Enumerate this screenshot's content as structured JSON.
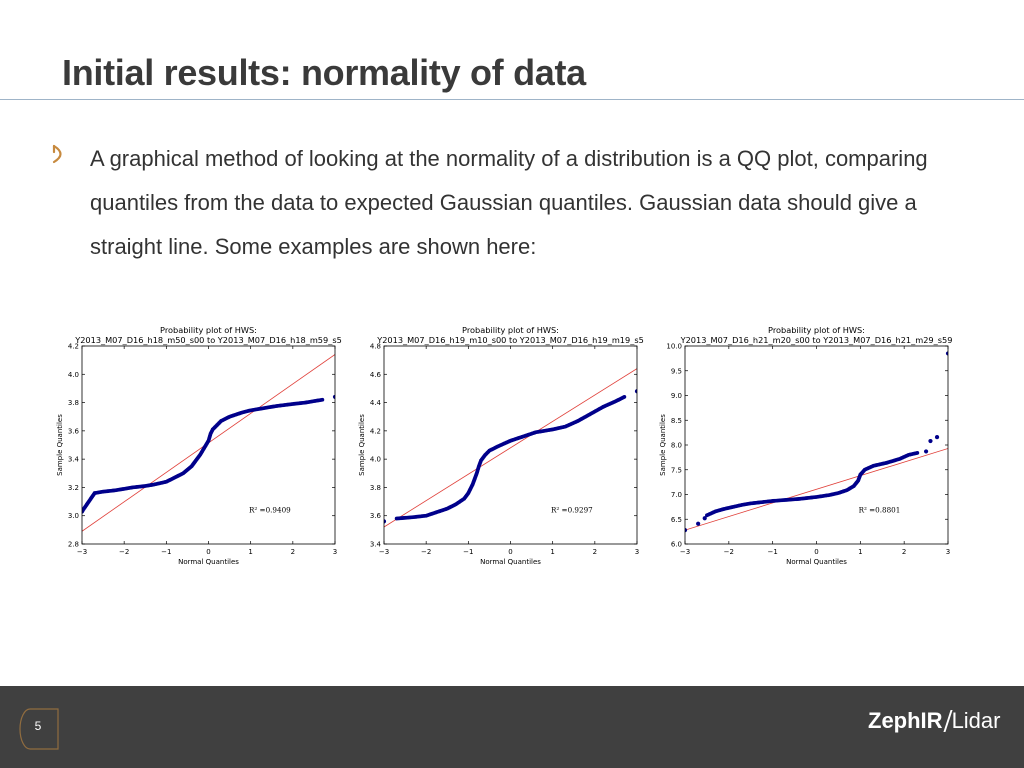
{
  "slide": {
    "title": "Initial results: normality of data",
    "body": "A graphical method of looking at the normality of a distribution is a QQ plot, comparing quantiles from the data to expected Gaussian quantiles. Gaussian data should give a straight line. Some examples are shown here:",
    "page_number": "5",
    "logo": {
      "brand": "ZephIR",
      "product": "Lidar"
    },
    "bullet_icon": "open-arc-bullet-icon",
    "colors": {
      "accent": "#c78a3f",
      "footer": "#404040",
      "points": "#00008b",
      "fit_line": "#e0403a"
    }
  },
  "chart_data": [
    {
      "type": "scatter",
      "title": "Probability plot of HWS:",
      "subtitle": "Y2013_M07_D16_h18_m50_s00 to Y2013_M07_D16_h18_m59_s5",
      "xlabel": "Normal Quantiles",
      "ylabel": "Sample Quantiles",
      "xlim": [
        -3,
        3
      ],
      "ylim": [
        2.8,
        4.2
      ],
      "xticks": [
        "−3",
        "−2",
        "−1",
        "0",
        "1",
        "2",
        "3"
      ],
      "yticks": [
        "2.8",
        "3.0",
        "3.2",
        "3.4",
        "3.6",
        "3.8",
        "4.0",
        "4.2"
      ],
      "fit_line": {
        "x": [
          -3,
          3
        ],
        "y": [
          2.89,
          4.14
        ]
      },
      "annotation": "R² =0.9409",
      "quantile_curve": {
        "x": [
          -3,
          -2.7,
          -2.5,
          -2.2,
          -2.0,
          -1.8,
          -1.5,
          -1.3,
          -1.0,
          -0.8,
          -0.6,
          -0.4,
          -0.3,
          -0.2,
          -0.1,
          0,
          0.05,
          0.1,
          0.2,
          0.3,
          0.5,
          0.8,
          1.0,
          1.3,
          1.6,
          2.0,
          2.3,
          2.5,
          2.7
        ],
        "y": [
          3.03,
          3.16,
          3.17,
          3.18,
          3.19,
          3.2,
          3.21,
          3.22,
          3.24,
          3.27,
          3.3,
          3.35,
          3.39,
          3.43,
          3.48,
          3.53,
          3.58,
          3.61,
          3.64,
          3.67,
          3.7,
          3.73,
          3.745,
          3.76,
          3.775,
          3.79,
          3.8,
          3.81,
          3.82
        ]
      },
      "outliers": [
        {
          "x": -3,
          "y": 3.03
        },
        {
          "x": 3,
          "y": 3.84
        }
      ]
    },
    {
      "type": "scatter",
      "title": "Probability plot of HWS:",
      "subtitle": "Y2013_M07_D16_h19_m10_s00 to Y2013_M07_D16_h19_m19_s5",
      "xlabel": "Normal Quantiles",
      "ylabel": "Sample Quantiles",
      "xlim": [
        -3,
        3
      ],
      "ylim": [
        3.4,
        4.8
      ],
      "xticks": [
        "−3",
        "−2",
        "−1",
        "0",
        "1",
        "2",
        "3"
      ],
      "yticks": [
        "3.4",
        "3.6",
        "3.8",
        "4.0",
        "4.2",
        "4.4",
        "4.6",
        "4.8"
      ],
      "fit_line": {
        "x": [
          -3,
          3
        ],
        "y": [
          3.52,
          4.64
        ]
      },
      "annotation": "R² =0.9297",
      "quantile_curve": {
        "x": [
          -2.7,
          -2.5,
          -2.3,
          -2.0,
          -1.8,
          -1.5,
          -1.3,
          -1.1,
          -1.0,
          -0.9,
          -0.8,
          -0.75,
          -0.7,
          -0.6,
          -0.5,
          -0.3,
          0,
          0.3,
          0.6,
          1.0,
          1.3,
          1.6,
          1.9,
          2.2,
          2.5,
          2.7
        ],
        "y": [
          3.58,
          3.585,
          3.59,
          3.6,
          3.62,
          3.65,
          3.68,
          3.72,
          3.76,
          3.82,
          3.9,
          3.95,
          3.99,
          4.03,
          4.06,
          4.09,
          4.13,
          4.16,
          4.19,
          4.21,
          4.23,
          4.27,
          4.32,
          4.37,
          4.41,
          4.44
        ]
      },
      "outliers": [
        {
          "x": -3,
          "y": 3.56
        },
        {
          "x": 3,
          "y": 4.48
        }
      ]
    },
    {
      "type": "scatter",
      "title": "Probability plot of HWS:",
      "subtitle": "Y2013_M07_D16_h21_m20_s00 to Y2013_M07_D16_h21_m29_s59",
      "xlabel": "Normal Quantiles",
      "ylabel": "Sample Quantiles",
      "xlim": [
        -3,
        3
      ],
      "ylim": [
        6.0,
        10.0
      ],
      "xticks": [
        "−3",
        "−2",
        "−1",
        "0",
        "1",
        "2",
        "3"
      ],
      "yticks": [
        "6.0",
        "6.5",
        "7.0",
        "7.5",
        "8.0",
        "8.5",
        "9.0",
        "9.5",
        "10.0"
      ],
      "fit_line": {
        "x": [
          -3,
          3
        ],
        "y": [
          6.28,
          7.93
        ]
      },
      "annotation": "R² =0.8801",
      "quantile_curve": {
        "x": [
          -2.5,
          -2.3,
          -2.1,
          -1.9,
          -1.7,
          -1.5,
          -1.2,
          -1.0,
          -0.7,
          -0.4,
          0,
          0.3,
          0.5,
          0.7,
          0.85,
          0.95,
          1.0,
          1.1,
          1.3,
          1.6,
          1.9,
          2.1,
          2.3
        ],
        "y": [
          6.58,
          6.66,
          6.71,
          6.75,
          6.79,
          6.82,
          6.85,
          6.87,
          6.89,
          6.91,
          6.95,
          6.99,
          7.03,
          7.09,
          7.17,
          7.28,
          7.4,
          7.5,
          7.58,
          7.64,
          7.72,
          7.8,
          7.84
        ]
      },
      "outliers": [
        {
          "x": -3,
          "y": 6.28
        },
        {
          "x": -2.7,
          "y": 6.41
        },
        {
          "x": -2.55,
          "y": 6.52
        },
        {
          "x": 2.5,
          "y": 7.87
        },
        {
          "x": 2.6,
          "y": 8.08
        },
        {
          "x": 2.75,
          "y": 8.16
        },
        {
          "x": 3,
          "y": 9.85
        }
      ]
    }
  ]
}
